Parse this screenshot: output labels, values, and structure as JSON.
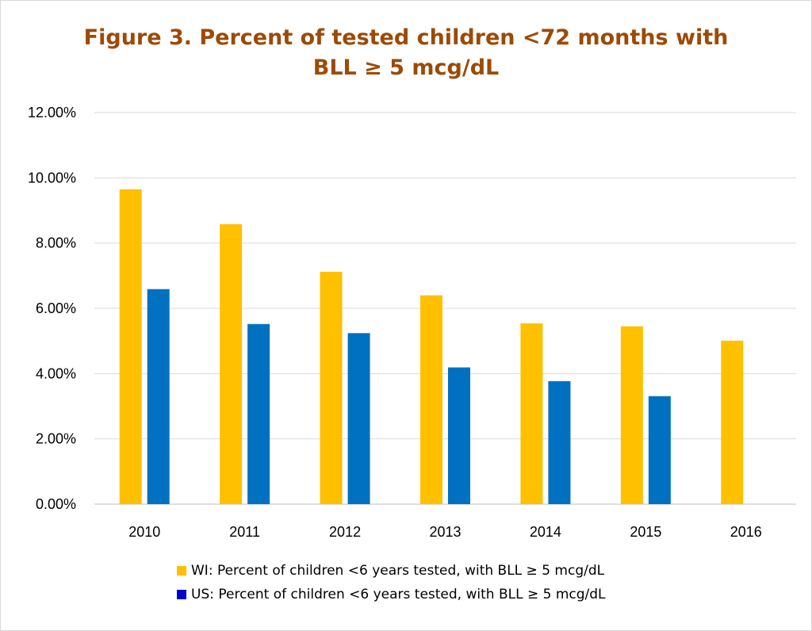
{
  "chart_data": {
    "type": "bar",
    "title_line1": "Figure 3. Percent of tested children <72 months with",
    "title_line2": "BLL ≥ 5 mcg/dL",
    "categories": [
      "2010",
      "2011",
      "2012",
      "2013",
      "2014",
      "2015",
      "2016"
    ],
    "series": [
      {
        "name": "WI: Percent of children <6 years tested, with BLL ≥ 5 mcg/dL",
        "color": "#ffc000",
        "legend_color": "#ffc000",
        "values": [
          9.65,
          8.58,
          7.12,
          6.4,
          5.54,
          5.45,
          5.01
        ]
      },
      {
        "name": "US: Percent of children <6 years tested, with BLL ≥ 5 mcg/dL",
        "color": "#0070c0",
        "legend_color": "#0000cc",
        "values": [
          6.59,
          5.52,
          5.24,
          4.19,
          3.77,
          3.31,
          null
        ]
      }
    ],
    "yticks": [
      "0.00%",
      "2.00%",
      "4.00%",
      "6.00%",
      "8.00%",
      "10.00%",
      "12.00%"
    ],
    "ylim": [
      0,
      12
    ],
    "grid": true,
    "legend_position": "bottom"
  }
}
